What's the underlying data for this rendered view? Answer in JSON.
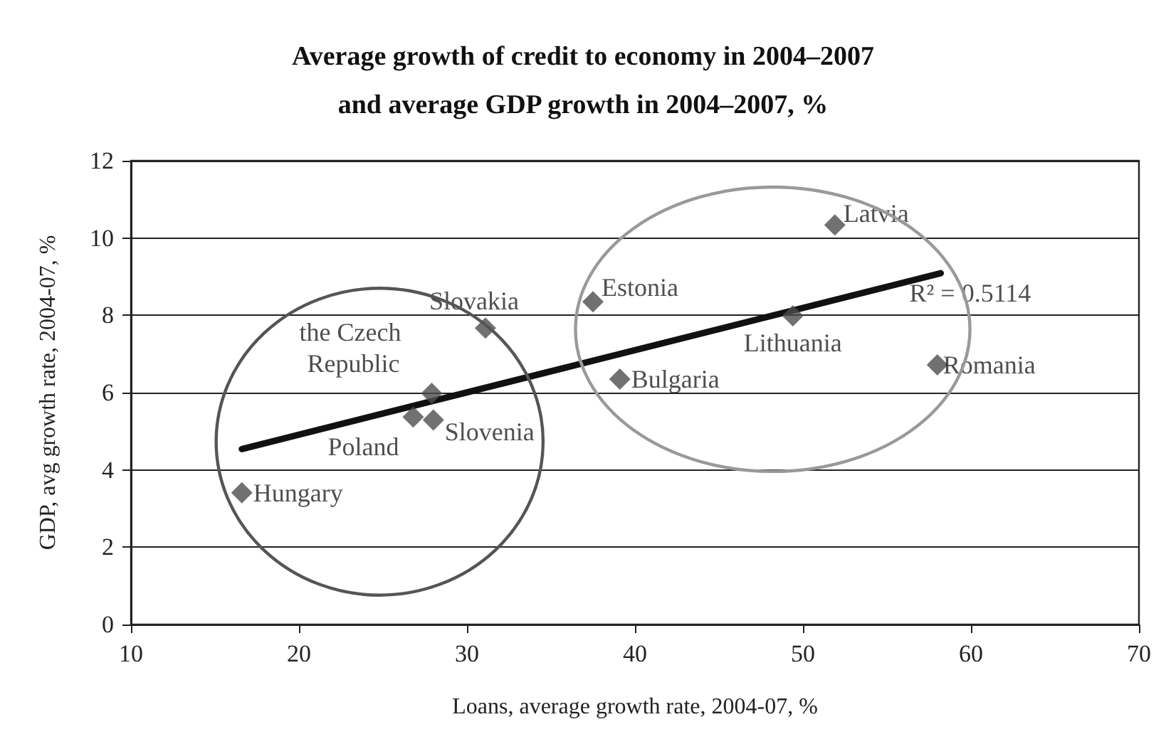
{
  "chart_data": {
    "type": "scatter",
    "title": "Average growth of credit to economy in 2004–2007\nand average GDP growth in 2004–2007, %",
    "xlabel": "Loans, average growth rate, 2004-07, %",
    "ylabel": "GDP, avg growth rate, 2004-07, %",
    "x": [
      16.6,
      26.8,
      27.9,
      28.0,
      31.1,
      37.5,
      39.1,
      49.4,
      51.9,
      58.0
    ],
    "series": [
      {
        "color": "#4d4d4d",
        "values": [
          3.41,
          5.37,
          5.98,
          5.29,
          7.67,
          8.35,
          6.35,
          7.99,
          10.34,
          6.72
        ]
      },
      {
        "type": "line",
        "color": "#111111",
        "x": [
          16.6,
          58.2
        ],
        "values": [
          4.54,
          9.09
        ],
        "marker": "none"
      }
    ],
    "marker": "diamond",
    "grid": "y",
    "xlim": [
      10,
      70
    ],
    "xticks": [
      10,
      20,
      30,
      40,
      50,
      60,
      70
    ],
    "ylim": [
      0,
      12
    ],
    "yticks": [
      0,
      2,
      4,
      6,
      8,
      10,
      12
    ],
    "annotations": [
      {
        "text": "Hungary",
        "x": 16.6,
        "y": 3.41
      },
      {
        "text": "Poland",
        "x": 26.8,
        "y": 5.37
      },
      {
        "text": "the Czech Republic",
        "x": 27.9,
        "y": 5.98
      },
      {
        "text": "Slovenia",
        "x": 28.0,
        "y": 5.29
      },
      {
        "text": "Slovakia",
        "x": 31.1,
        "y": 7.67
      },
      {
        "text": "Estonia",
        "x": 37.5,
        "y": 8.35
      },
      {
        "text": "Bulgaria",
        "x": 39.1,
        "y": 6.35
      },
      {
        "text": "Lithuania",
        "x": 49.4,
        "y": 7.99
      },
      {
        "text": "Latvia",
        "x": 51.9,
        "y": 10.34
      },
      {
        "text": "Romania",
        "x": 58.0,
        "y": 6.72
      },
      {
        "text": "R² = 0.5114",
        "x": 58.2,
        "y": 9.09
      }
    ]
  }
}
